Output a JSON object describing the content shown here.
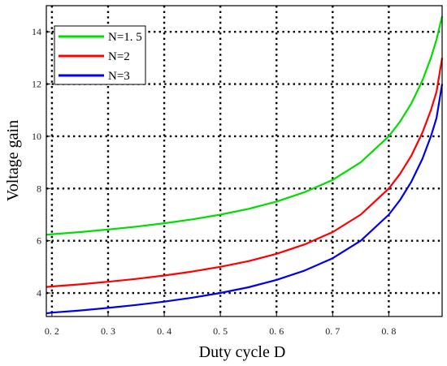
{
  "chart_data": {
    "type": "line",
    "xlabel": "Duty cycle  D",
    "ylabel": "Voltage gain",
    "xlim": [
      0.19,
      0.895
    ],
    "ylim": [
      3.1,
      15
    ],
    "xticks": [
      0.2,
      0.3,
      0.4,
      0.5,
      0.6,
      0.7,
      0.8
    ],
    "xtick_labels": [
      "0. 2",
      "0. 3",
      "0. 4",
      "0. 5",
      "0. 6",
      "0. 7",
      "0. 8"
    ],
    "yticks": [
      4,
      6,
      8,
      10,
      12,
      14
    ],
    "ytick_labels": [
      "4",
      "6",
      "8",
      "10",
      "12",
      "14"
    ],
    "grid": true,
    "legend_position": "top-left",
    "x": [
      0.19,
      0.2,
      0.25,
      0.3,
      0.35,
      0.4,
      0.45,
      0.5,
      0.55,
      0.6,
      0.65,
      0.7,
      0.75,
      0.8,
      0.82,
      0.84,
      0.86,
      0.875,
      0.885,
      0.895
    ],
    "series": [
      {
        "name": "N=1. 5",
        "color": "#00dd00",
        "values": [
          6.23,
          6.25,
          6.33,
          6.43,
          6.54,
          6.67,
          6.82,
          7.0,
          7.22,
          7.5,
          7.86,
          8.33,
          9.0,
          10.0,
          10.56,
          11.25,
          12.14,
          13.0,
          13.7,
          14.6
        ]
      },
      {
        "name": "N=2",
        "color": "#ff0000",
        "values": [
          4.23,
          4.25,
          4.33,
          4.43,
          4.54,
          4.67,
          4.82,
          5.0,
          5.22,
          5.5,
          5.86,
          6.33,
          7.0,
          8.0,
          8.56,
          9.25,
          10.14,
          11.0,
          11.7,
          13.0
        ]
      },
      {
        "name": "N=3",
        "color": "#0000ee",
        "values": [
          3.22,
          3.25,
          3.33,
          3.43,
          3.54,
          3.67,
          3.82,
          4.0,
          4.22,
          4.5,
          4.86,
          5.33,
          6.0,
          7.0,
          7.56,
          8.25,
          9.14,
          10.0,
          10.7,
          12.0
        ]
      }
    ]
  }
}
